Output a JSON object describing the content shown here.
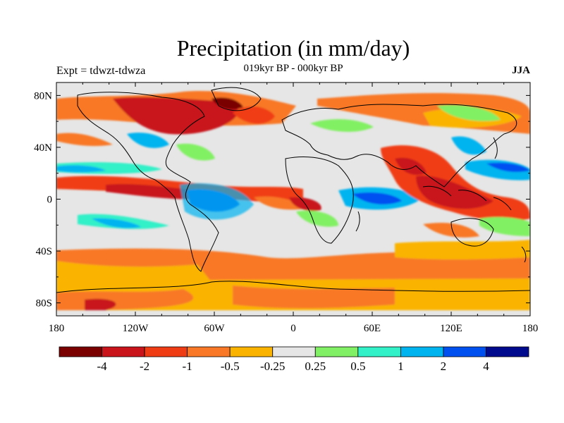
{
  "title": "Precipitation (in mm/day)",
  "subtitle_left": "Expt = tdwzt-tdwza",
  "subtitle_center": "019kyr BP - 000kyr BP",
  "subtitle_right": "JJA",
  "x_ticks": [
    "180",
    "120W",
    "60W",
    "0",
    "60E",
    "120E",
    "180"
  ],
  "y_ticks": [
    "80N",
    "40N",
    "0",
    "40S",
    "80S"
  ],
  "colorbar": {
    "colors": [
      "#7a0000",
      "#c8141a",
      "#f03c14",
      "#f87828",
      "#fab400",
      "#e6e6e6",
      "#82f064",
      "#32f0c8",
      "#00b4f0",
      "#0050f0",
      "#000a8c"
    ],
    "labels": [
      "-4",
      "-2",
      "-1",
      "-0.5",
      "-0.25",
      "0.25",
      "0.5",
      "1",
      "2",
      "4"
    ]
  },
  "colors": {
    "land_outline": "#000000",
    "neutral": "#e6e6e6",
    "dry_strong": "#c8141a",
    "dry": "#f03c14",
    "dry_mod": "#f87828",
    "dry_weak": "#fab400",
    "wet_weak": "#82f064",
    "wet": "#32f0c8",
    "wet_mod": "#00b4f0",
    "wet_strong": "#0050f0"
  }
}
